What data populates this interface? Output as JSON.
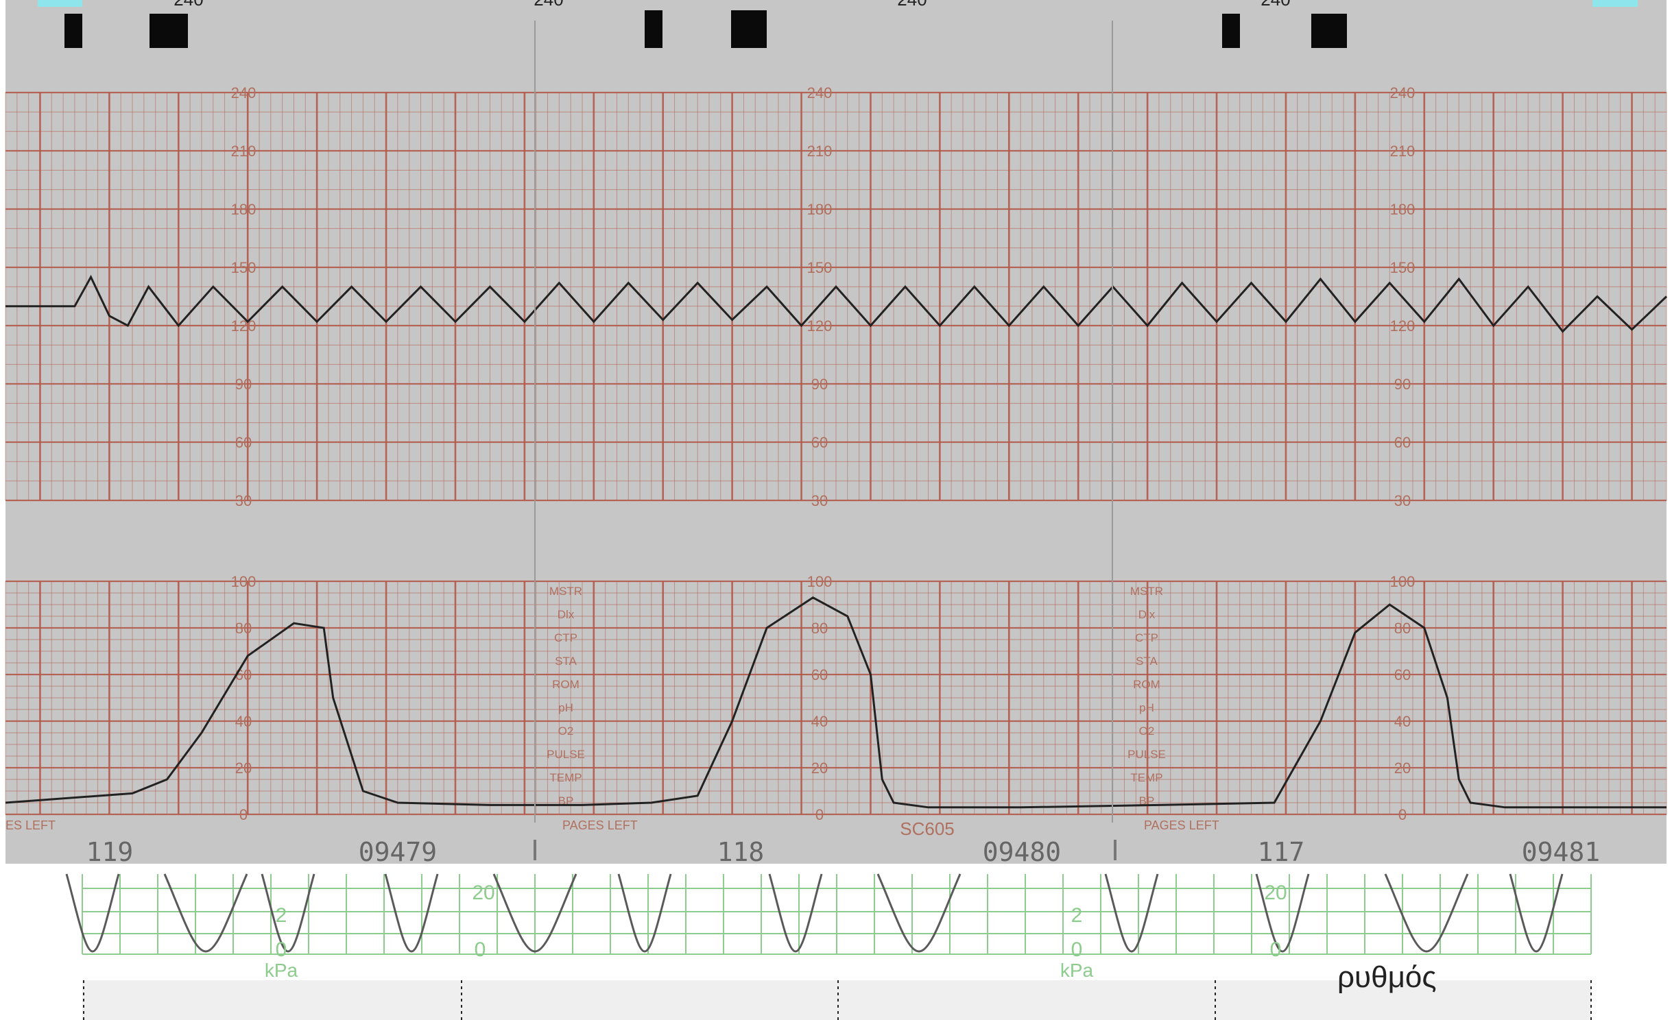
{
  "chart_data": [
    {
      "type": "line",
      "title": "",
      "xlabel": "",
      "ylabel": "",
      "ylim": [
        30,
        240
      ],
      "yticks": [
        30,
        60,
        90,
        120,
        150,
        180,
        210,
        240
      ],
      "grid": true,
      "series": [
        {
          "x": [
            0,
            3,
            3.7,
            4.5,
            5.3,
            6.2,
            7.5,
            9,
            10.5,
            12,
            13.5,
            15,
            16.5,
            18,
            19.5,
            21,
            22.5,
            24,
            25.5,
            27,
            28.5,
            30,
            31.5,
            33,
            34.5,
            36,
            37.5,
            39,
            40.5,
            42,
            43.5,
            45,
            46.5,
            48,
            49.5,
            51,
            52.5,
            54,
            55.5,
            57,
            58.5,
            60,
            61.5,
            63,
            64.5,
            66,
            67.5,
            69,
            70.5,
            72
          ],
          "y": [
            130,
            130,
            145,
            125,
            120,
            140,
            120,
            140,
            122,
            140,
            122,
            140,
            122,
            140,
            122,
            140,
            122,
            142,
            122,
            142,
            123,
            142,
            123,
            140,
            120,
            140,
            120,
            140,
            120,
            140,
            120,
            140,
            120,
            140,
            120,
            142,
            122,
            142,
            122,
            144,
            122,
            142,
            122,
            144,
            120,
            140,
            117,
            135,
            118,
            135
          ]
        }
      ]
    },
    {
      "type": "line",
      "title": "",
      "xlabel": "",
      "ylabel": "",
      "ylim": [
        0,
        100
      ],
      "yticks": [
        0,
        20,
        40,
        60,
        80,
        100
      ],
      "grid": true,
      "series": [
        {
          "x": [
            0,
            5.5,
            7,
            8.5,
            10.5,
            12.5,
            13.8,
            14.2,
            15.5,
            17,
            21,
            25,
            28,
            30,
            31.5,
            33,
            35,
            36.5,
            37.5,
            38,
            38.5,
            40,
            44,
            50,
            55,
            57,
            58.5,
            60,
            61.5,
            62.5,
            63,
            63.5,
            65,
            72
          ],
          "y": [
            5,
            9,
            15,
            35,
            68,
            82,
            80,
            50,
            10,
            5,
            4,
            4,
            5,
            8,
            40,
            80,
            93,
            85,
            60,
            15,
            5,
            3,
            3,
            4,
            5,
            40,
            78,
            90,
            80,
            50,
            15,
            5,
            3,
            3
          ]
        }
      ]
    }
  ],
  "strip": {
    "top_markers": [
      "240",
      "240",
      "240",
      "240"
    ],
    "page_labels": [
      {
        "small": "ES LEFT",
        "count": "119",
        "number": "09479"
      },
      {
        "small": "PAGES LEFT",
        "count": "118",
        "number": "09480"
      },
      {
        "small": "PAGES LEFT",
        "count": "117",
        "number": "09481"
      }
    ],
    "center_code": "SC605",
    "side_labels": [
      "MSTR",
      "Dlx",
      "CTP",
      "STA",
      "ROM",
      "pH",
      "O2",
      "PULSE",
      "TEMP",
      "BP"
    ]
  },
  "lower": {
    "unit": "kPa",
    "ticks": [
      "20",
      "2",
      "0"
    ]
  },
  "caption_fragment": "ρυθμός"
}
